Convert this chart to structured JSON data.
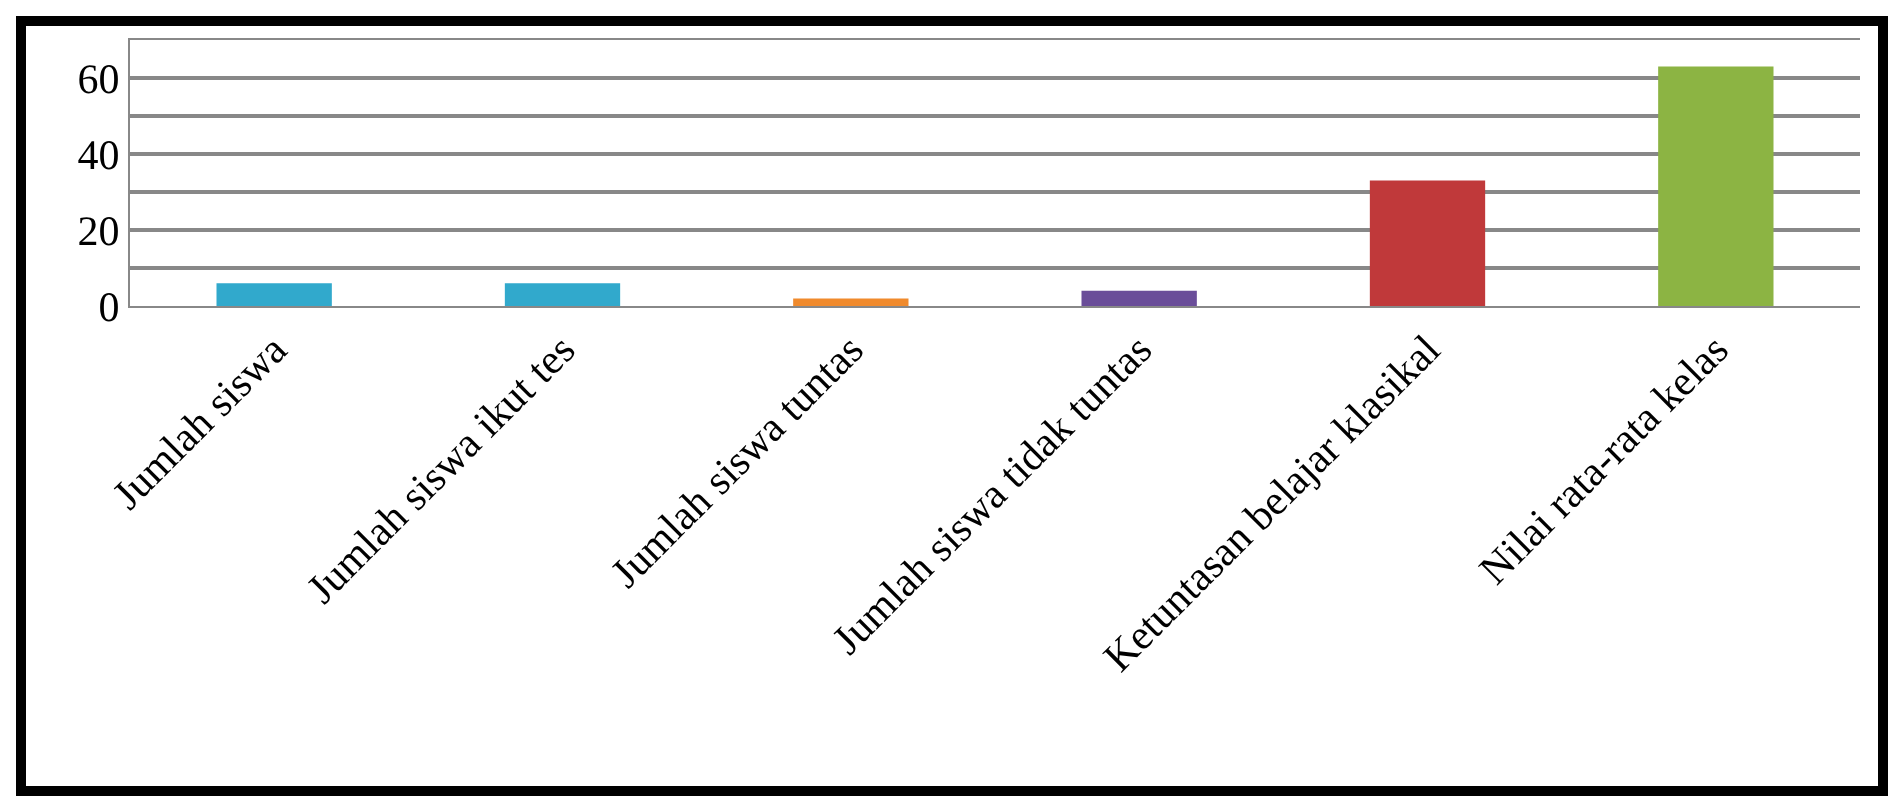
{
  "chart_data": {
    "type": "bar",
    "categories": [
      "Jumlah siswa",
      "Jumlah siswa ikut tes",
      "Jumlah siswa tuntas",
      "Jumlah siswa tidak tuntas",
      "Ketuntasan belajar klasikal",
      "Nilai rata-rata kelas"
    ],
    "values": [
      6,
      6,
      2,
      4,
      33,
      63
    ],
    "colors": [
      "#31a9cc",
      "#31a9cc",
      "#f08a2c",
      "#6a4d99",
      "#c0393a",
      "#8cb443"
    ],
    "ylim": [
      0,
      70
    ],
    "yticks": [
      0,
      {
        "value": 10,
        "label": null
      },
      20,
      {
        "value": 30,
        "label": null
      },
      40,
      {
        "value": 50,
        "label": null
      },
      60
    ],
    "grid": true
  }
}
